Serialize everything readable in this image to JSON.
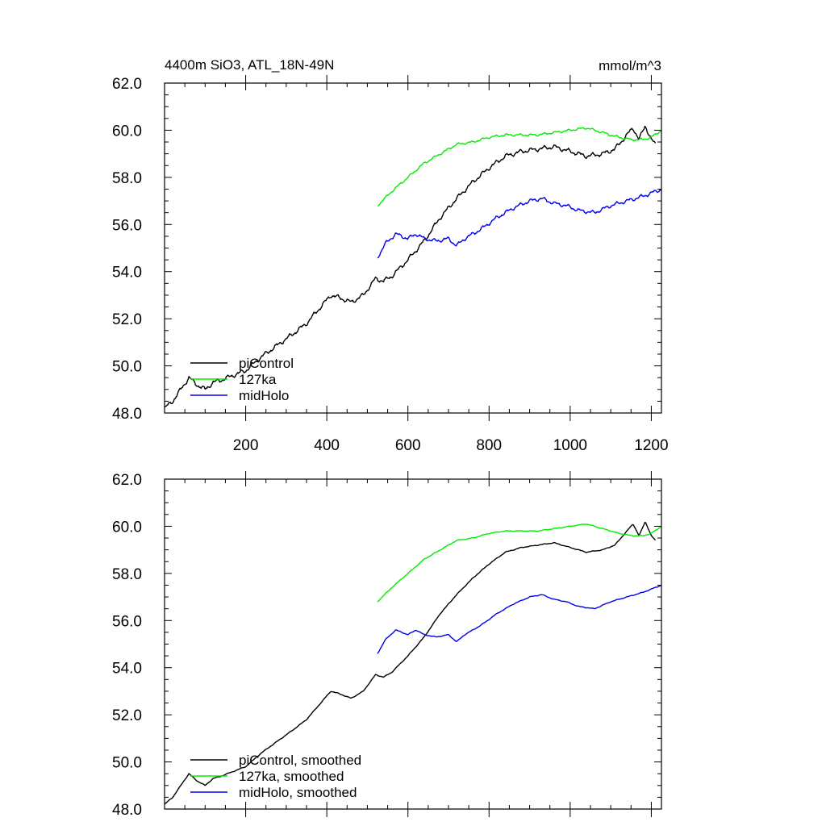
{
  "chart_data": [
    {
      "type": "line",
      "title_left": "4400m SiO3, ATL_18N-49N",
      "title_right": "mmol/m^3",
      "xlim": [
        0,
        1225
      ],
      "ylim": [
        48.0,
        62.0
      ],
      "x_tick_values": [
        200,
        400,
        600,
        800,
        1000,
        1200
      ],
      "x_tick_labels": [
        "200",
        "400",
        "600",
        "800",
        "1000",
        "1200"
      ],
      "y_tick_values": [
        48,
        50,
        52,
        54,
        56,
        58,
        60,
        62
      ],
      "y_tick_labels": [
        "48.0",
        "50.0",
        "52.0",
        "54.0",
        "56.0",
        "58.0",
        "60.0",
        "62.0"
      ],
      "series": [
        {
          "name": "piControl",
          "color": "#000000",
          "noise": 0.12,
          "points": [
            [
              0,
              48.2
            ],
            [
              20,
              48.5
            ],
            [
              40,
              49.0
            ],
            [
              60,
              49.5
            ],
            [
              80,
              49.2
            ],
            [
              100,
              49.0
            ],
            [
              120,
              49.3
            ],
            [
              140,
              49.4
            ],
            [
              170,
              49.6
            ],
            [
              200,
              49.8
            ],
            [
              240,
              50.4
            ],
            [
              280,
              50.9
            ],
            [
              320,
              51.4
            ],
            [
              350,
              51.8
            ],
            [
              380,
              52.4
            ],
            [
              410,
              53.0
            ],
            [
              430,
              52.9
            ],
            [
              460,
              52.7
            ],
            [
              490,
              53.0
            ],
            [
              520,
              53.7
            ],
            [
              540,
              53.6
            ],
            [
              560,
              53.8
            ],
            [
              600,
              54.5
            ],
            [
              640,
              55.3
            ],
            [
              680,
              56.3
            ],
            [
              720,
              57.1
            ],
            [
              760,
              57.8
            ],
            [
              800,
              58.4
            ],
            [
              840,
              58.9
            ],
            [
              880,
              59.1
            ],
            [
              920,
              59.2
            ],
            [
              960,
              59.3
            ],
            [
              1000,
              59.1
            ],
            [
              1040,
              58.9
            ],
            [
              1080,
              59.0
            ],
            [
              1110,
              59.2
            ],
            [
              1140,
              59.8
            ],
            [
              1155,
              60.1
            ],
            [
              1170,
              59.6
            ],
            [
              1185,
              60.2
            ],
            [
              1200,
              59.6
            ],
            [
              1210,
              59.4
            ]
          ]
        },
        {
          "name": "127ka",
          "color": "#00ee00",
          "noise": 0.06,
          "points": [
            [
              525,
              56.8
            ],
            [
              560,
              57.4
            ],
            [
              600,
              58.0
            ],
            [
              640,
              58.6
            ],
            [
              680,
              59.0
            ],
            [
              720,
              59.4
            ],
            [
              760,
              59.5
            ],
            [
              800,
              59.7
            ],
            [
              840,
              59.8
            ],
            [
              880,
              59.8
            ],
            [
              920,
              59.8
            ],
            [
              960,
              59.9
            ],
            [
              1000,
              60.0
            ],
            [
              1040,
              60.1
            ],
            [
              1080,
              59.9
            ],
            [
              1100,
              59.8
            ],
            [
              1120,
              59.7
            ],
            [
              1150,
              59.6
            ],
            [
              1180,
              59.6
            ],
            [
              1200,
              59.7
            ],
            [
              1225,
              60.0
            ]
          ]
        },
        {
          "name": "midHolo",
          "color": "#0000ee",
          "noise": 0.1,
          "points": [
            [
              525,
              54.6
            ],
            [
              545,
              55.2
            ],
            [
              570,
              55.6
            ],
            [
              600,
              55.4
            ],
            [
              620,
              55.6
            ],
            [
              640,
              55.4
            ],
            [
              670,
              55.3
            ],
            [
              700,
              55.4
            ],
            [
              720,
              55.1
            ],
            [
              740,
              55.4
            ],
            [
              780,
              55.8
            ],
            [
              820,
              56.3
            ],
            [
              860,
              56.7
            ],
            [
              900,
              57.0
            ],
            [
              930,
              57.1
            ],
            [
              960,
              56.9
            ],
            [
              990,
              56.8
            ],
            [
              1020,
              56.6
            ],
            [
              1060,
              56.5
            ],
            [
              1100,
              56.8
            ],
            [
              1140,
              57.0
            ],
            [
              1180,
              57.2
            ],
            [
              1225,
              57.5
            ]
          ]
        }
      ],
      "legend": [
        "piControl",
        "127ka",
        "midHolo"
      ]
    },
    {
      "type": "line",
      "title_left": "",
      "title_right": "",
      "xlim": [
        0,
        1225
      ],
      "ylim": [
        48.0,
        62.0
      ],
      "x_tick_values": [],
      "x_tick_labels": [],
      "y_tick_values": [
        48,
        50,
        52,
        54,
        56,
        58,
        60,
        62
      ],
      "y_tick_labels": [
        "48.0",
        "50.0",
        "52.0",
        "54.0",
        "56.0",
        "58.0",
        "60.0",
        "62.0"
      ],
      "series": [
        {
          "name": "piControl, smoothed",
          "color": "#000000",
          "noise": 0.02,
          "points": [
            [
              0,
              48.2
            ],
            [
              20,
              48.5
            ],
            [
              40,
              49.0
            ],
            [
              60,
              49.5
            ],
            [
              80,
              49.2
            ],
            [
              100,
              49.0
            ],
            [
              120,
              49.3
            ],
            [
              140,
              49.4
            ],
            [
              170,
              49.6
            ],
            [
              200,
              49.8
            ],
            [
              240,
              50.4
            ],
            [
              280,
              50.9
            ],
            [
              320,
              51.4
            ],
            [
              350,
              51.8
            ],
            [
              380,
              52.4
            ],
            [
              410,
              53.0
            ],
            [
              430,
              52.9
            ],
            [
              460,
              52.7
            ],
            [
              490,
              53.0
            ],
            [
              520,
              53.7
            ],
            [
              540,
              53.6
            ],
            [
              560,
              53.8
            ],
            [
              600,
              54.5
            ],
            [
              640,
              55.3
            ],
            [
              680,
              56.3
            ],
            [
              720,
              57.1
            ],
            [
              760,
              57.8
            ],
            [
              800,
              58.4
            ],
            [
              840,
              58.9
            ],
            [
              880,
              59.1
            ],
            [
              920,
              59.2
            ],
            [
              960,
              59.3
            ],
            [
              1000,
              59.1
            ],
            [
              1040,
              58.9
            ],
            [
              1080,
              59.0
            ],
            [
              1110,
              59.2
            ],
            [
              1140,
              59.8
            ],
            [
              1155,
              60.1
            ],
            [
              1170,
              59.6
            ],
            [
              1185,
              60.2
            ],
            [
              1200,
              59.6
            ],
            [
              1210,
              59.4
            ]
          ]
        },
        {
          "name": "127ka, smoothed",
          "color": "#00ee00",
          "noise": 0.02,
          "points": [
            [
              525,
              56.8
            ],
            [
              560,
              57.4
            ],
            [
              600,
              58.0
            ],
            [
              640,
              58.6
            ],
            [
              680,
              59.0
            ],
            [
              720,
              59.4
            ],
            [
              760,
              59.5
            ],
            [
              800,
              59.7
            ],
            [
              840,
              59.8
            ],
            [
              880,
              59.8
            ],
            [
              920,
              59.8
            ],
            [
              960,
              59.9
            ],
            [
              1000,
              60.0
            ],
            [
              1040,
              60.1
            ],
            [
              1080,
              59.9
            ],
            [
              1100,
              59.8
            ],
            [
              1120,
              59.7
            ],
            [
              1150,
              59.6
            ],
            [
              1180,
              59.6
            ],
            [
              1200,
              59.7
            ],
            [
              1225,
              60.0
            ]
          ]
        },
        {
          "name": "midHolo, smoothed",
          "color": "#0000ee",
          "noise": 0.02,
          "points": [
            [
              525,
              54.6
            ],
            [
              545,
              55.2
            ],
            [
              570,
              55.6
            ],
            [
              600,
              55.4
            ],
            [
              620,
              55.6
            ],
            [
              640,
              55.4
            ],
            [
              670,
              55.3
            ],
            [
              700,
              55.4
            ],
            [
              720,
              55.1
            ],
            [
              740,
              55.4
            ],
            [
              780,
              55.8
            ],
            [
              820,
              56.3
            ],
            [
              860,
              56.7
            ],
            [
              900,
              57.0
            ],
            [
              930,
              57.1
            ],
            [
              960,
              56.9
            ],
            [
              990,
              56.8
            ],
            [
              1020,
              56.6
            ],
            [
              1060,
              56.5
            ],
            [
              1100,
              56.8
            ],
            [
              1140,
              57.0
            ],
            [
              1180,
              57.2
            ],
            [
              1225,
              57.5
            ]
          ]
        }
      ],
      "legend": [
        "piControl, smoothed",
        "127ka, smoothed",
        "midHolo, smoothed"
      ]
    }
  ]
}
